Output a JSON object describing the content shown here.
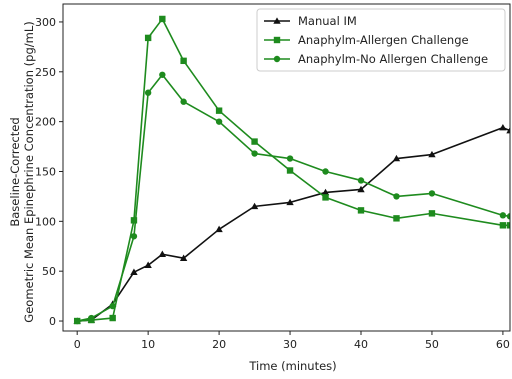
{
  "chart_data": {
    "type": "line",
    "title": "",
    "xlabel": "Time (minutes)",
    "ylabel_lines": [
      "Baseline-Corrected",
      "Geometric Mean Epinephrine Concentration (pg/mL)"
    ],
    "xlim": [
      -2,
      61
    ],
    "ylim": [
      -10,
      318
    ],
    "xticks": [
      0,
      10,
      20,
      30,
      40,
      50,
      60
    ],
    "yticks": [
      0,
      50,
      100,
      150,
      200,
      250,
      300
    ],
    "grid": false,
    "legend_position": "top-right",
    "series": [
      {
        "name": "Manual IM",
        "color": "#111111",
        "marker": "triangle",
        "points": [
          [
            0,
            0
          ],
          [
            2,
            1
          ],
          [
            5,
            17
          ],
          [
            8,
            49
          ],
          [
            10,
            56
          ],
          [
            12,
            67
          ],
          [
            15,
            63
          ],
          [
            20,
            92
          ],
          [
            25,
            115
          ],
          [
            30,
            119
          ],
          [
            35,
            129
          ],
          [
            40,
            132
          ],
          [
            45,
            163
          ],
          [
            50,
            167
          ],
          [
            60,
            194
          ],
          [
            61,
            191
          ]
        ]
      },
      {
        "name": "Anaphylm-Allergen Challenge",
        "color": "#1e8b1e",
        "marker": "square",
        "points": [
          [
            0,
            0
          ],
          [
            2,
            1
          ],
          [
            5,
            3
          ],
          [
            8,
            101
          ],
          [
            10,
            284
          ],
          [
            12,
            303
          ],
          [
            15,
            261
          ],
          [
            20,
            211
          ],
          [
            25,
            180
          ],
          [
            30,
            151
          ],
          [
            35,
            124
          ],
          [
            40,
            111
          ],
          [
            45,
            103
          ],
          [
            50,
            108
          ],
          [
            60,
            96
          ],
          [
            61,
            96
          ]
        ]
      },
      {
        "name": "Anaphylm-No Allergen Challenge",
        "color": "#1e8b1e",
        "marker": "circle",
        "points": [
          [
            0,
            0
          ],
          [
            2,
            3
          ],
          [
            5,
            15
          ],
          [
            8,
            85
          ],
          [
            10,
            229
          ],
          [
            12,
            247
          ],
          [
            15,
            220
          ],
          [
            20,
            200
          ],
          [
            25,
            168
          ],
          [
            30,
            163
          ],
          [
            35,
            150
          ],
          [
            40,
            141
          ],
          [
            45,
            125
          ],
          [
            50,
            128
          ],
          [
            60,
            106
          ],
          [
            61,
            105
          ]
        ]
      }
    ]
  }
}
